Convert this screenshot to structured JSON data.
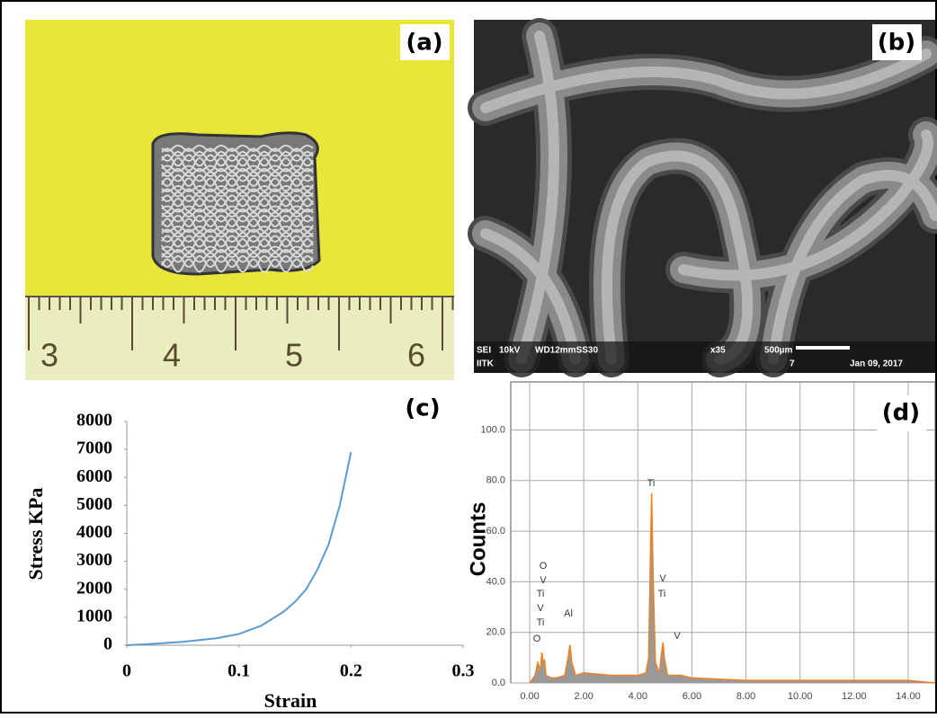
{
  "panels": {
    "a": {
      "label": "(a)",
      "ruler_numbers": [
        "3",
        "4",
        "5",
        "6"
      ]
    },
    "b": {
      "label": "(b)",
      "info": [
        "SEI",
        "10kV",
        "WD12mmSS30",
        "x35",
        "500µm",
        "IITK",
        "7",
        "Jan 09, 2017"
      ]
    }
  },
  "chart_data": [
    {
      "type": "line",
      "label": "(c)",
      "xlabel": "Strain",
      "ylabel": "Stress KPa",
      "xlim": [
        0,
        0.3
      ],
      "ylim": [
        0,
        8000
      ],
      "xticks": [
        0,
        0.1,
        0.2,
        0.3
      ],
      "yticks": [
        0,
        1000,
        2000,
        3000,
        4000,
        5000,
        6000,
        7000,
        8000
      ],
      "x": [
        0,
        0.02,
        0.05,
        0.08,
        0.1,
        0.12,
        0.14,
        0.15,
        0.16,
        0.17,
        0.18,
        0.19,
        0.2
      ],
      "series": [
        {
          "color": "#5b9bd5",
          "values": [
            0,
            40,
            120,
            250,
            400,
            700,
            1200,
            1550,
            2000,
            2700,
            3600,
            5000,
            6900
          ]
        }
      ]
    },
    {
      "type": "spectrum",
      "label": "(d)",
      "ylabel": "Counts",
      "grid": true,
      "xlim": [
        -0.7,
        15
      ],
      "ylim": [
        0,
        119
      ],
      "xticks": [
        {
          "value": 0,
          "label": "0.00"
        },
        {
          "value": 2,
          "label": "2.00"
        },
        {
          "value": 4,
          "label": "4.00"
        },
        {
          "value": 6,
          "label": "6.00"
        },
        {
          "value": 8,
          "label": "8.00"
        },
        {
          "value": 10,
          "label": "10.00"
        },
        {
          "value": 12,
          "label": "12.00"
        },
        {
          "value": 14,
          "label": "14.00"
        }
      ],
      "yticks": [
        {
          "value": 0,
          "label": "0.0"
        },
        {
          "value": 20,
          "label": "20.0"
        },
        {
          "value": 40,
          "label": "40.0"
        },
        {
          "value": 60,
          "label": "60.0"
        },
        {
          "value": 80,
          "label": "80.0"
        },
        {
          "value": 100,
          "label": "100.0"
        }
      ],
      "peak_labels": [
        "O",
        "V",
        "Ti",
        "V",
        "Ti",
        "O",
        "Al",
        "Ti",
        "V",
        "Ti",
        "V"
      ],
      "x": [
        0,
        0.2,
        0.3,
        0.4,
        0.45,
        0.5,
        0.55,
        0.6,
        0.8,
        1.0,
        1.3,
        1.42,
        1.49,
        1.56,
        1.7,
        2.0,
        3.0,
        4.0,
        4.3,
        4.4,
        4.45,
        4.51,
        4.57,
        4.65,
        4.8,
        4.88,
        4.93,
        4.98,
        5.1,
        5.43,
        5.6,
        6,
        8,
        10,
        12,
        14,
        15
      ],
      "series": [
        {
          "color": "#f08020",
          "values": [
            0,
            3,
            8,
            5,
            12,
            8,
            9,
            3,
            2,
            2,
            3,
            10,
            15,
            8,
            3,
            4,
            3,
            3,
            4,
            10,
            40,
            75,
            40,
            8,
            4,
            12,
            16,
            10,
            3,
            3,
            3,
            2,
            1,
            1,
            1,
            1,
            0
          ]
        }
      ]
    }
  ]
}
